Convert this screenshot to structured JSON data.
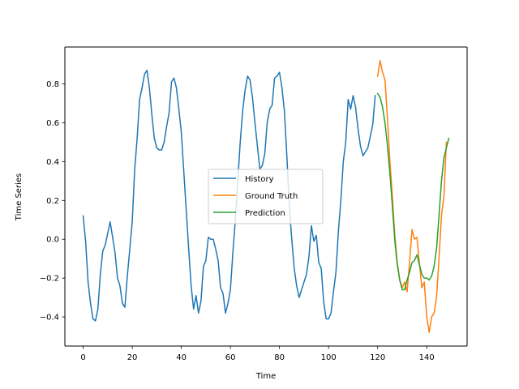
{
  "chart_data": {
    "type": "line",
    "title": "",
    "xlabel": "Time",
    "ylabel": "Time Series",
    "xlim": [
      -7.45,
      156.45
    ],
    "ylim": [
      -0.55,
      0.99
    ],
    "xticks": [
      0,
      20,
      40,
      60,
      80,
      100,
      120,
      140
    ],
    "yticks": [
      -0.4,
      -0.2,
      0.0,
      0.2,
      0.4,
      0.6,
      0.8
    ],
    "ytick_labels": [
      "−0.4",
      "−0.2",
      "0.0",
      "0.2",
      "0.4",
      "0.6",
      "0.8"
    ],
    "grid": false,
    "legend_position": "center",
    "series": [
      {
        "name": "History",
        "color": "#1f77b4",
        "x_start": 0,
        "values": [
          0.12,
          -0.01,
          -0.22,
          -0.33,
          -0.41,
          -0.42,
          -0.36,
          -0.18,
          -0.06,
          -0.03,
          0.03,
          0.09,
          0.01,
          -0.07,
          -0.2,
          -0.24,
          -0.33,
          -0.35,
          -0.19,
          -0.05,
          0.09,
          0.36,
          0.52,
          0.72,
          0.78,
          0.85,
          0.87,
          0.78,
          0.64,
          0.52,
          0.47,
          0.46,
          0.46,
          0.5,
          0.58,
          0.65,
          0.81,
          0.83,
          0.78,
          0.67,
          0.55,
          0.35,
          0.15,
          -0.05,
          -0.24,
          -0.36,
          -0.29,
          -0.38,
          -0.32,
          -0.14,
          -0.11,
          0.01,
          0.0,
          0.0,
          -0.05,
          -0.11,
          -0.25,
          -0.28,
          -0.38,
          -0.33,
          -0.26,
          -0.07,
          0.1,
          0.3,
          0.5,
          0.66,
          0.77,
          0.84,
          0.82,
          0.73,
          0.6,
          0.48,
          0.36,
          0.38,
          0.44,
          0.6,
          0.67,
          0.69,
          0.83,
          0.84,
          0.86,
          0.78,
          0.66,
          0.43,
          0.17,
          0.0,
          -0.15,
          -0.24,
          -0.3,
          -0.26,
          -0.22,
          -0.18,
          -0.09,
          0.07,
          -0.01,
          0.02,
          -0.12,
          -0.15,
          -0.32,
          -0.41,
          -0.41,
          -0.38,
          -0.27,
          -0.17,
          0.04,
          0.2,
          0.4,
          0.5,
          0.72,
          0.67,
          0.74,
          0.68,
          0.57,
          0.48,
          0.43,
          0.45,
          0.47,
          0.53,
          0.59,
          0.74
        ]
      },
      {
        "name": "Ground Truth",
        "color": "#ff7f0e",
        "x_start": 120,
        "values": [
          0.84,
          0.92,
          0.86,
          0.82,
          0.62,
          0.4,
          0.22,
          0.02,
          -0.12,
          -0.21,
          -0.25,
          -0.22,
          -0.27,
          -0.12,
          0.05,
          0.0,
          0.01,
          -0.12,
          -0.25,
          -0.22,
          -0.4,
          -0.48,
          -0.4,
          -0.38,
          -0.3,
          -0.1,
          0.12,
          0.22,
          0.5
        ]
      },
      {
        "name": "Prediction",
        "color": "#2ca02c",
        "x_start": 120,
        "values": [
          0.75,
          0.73,
          0.68,
          0.6,
          0.48,
          0.34,
          0.17,
          -0.01,
          -0.13,
          -0.21,
          -0.26,
          -0.26,
          -0.21,
          -0.17,
          -0.12,
          -0.11,
          -0.08,
          -0.13,
          -0.18,
          -0.2,
          -0.2,
          -0.21,
          -0.19,
          -0.14,
          -0.05,
          0.12,
          0.3,
          0.42,
          0.47,
          0.52
        ]
      }
    ]
  }
}
